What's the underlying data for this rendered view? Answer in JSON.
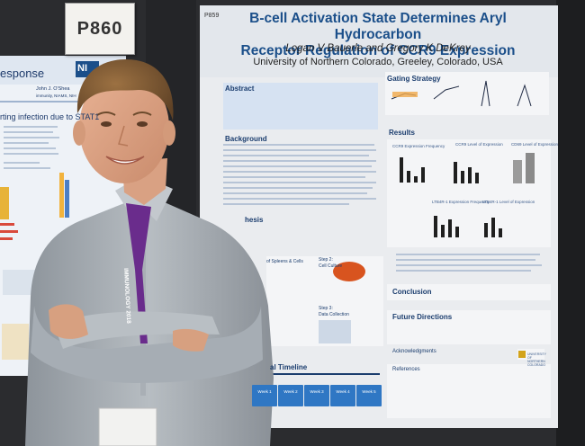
{
  "left_board": {
    "card_number": "P860",
    "poster_title_fragment": "esponse",
    "logo_text": "NI",
    "author_line": "John J. O'Shea",
    "affiliation_line": "immunity, NIAMS, NIH",
    "heading_fragment": "rting infection due to STAT1"
  },
  "main_poster": {
    "poster_id": "P859",
    "title_line1": "B-cell Activation State Determines Aryl Hydrocarbon",
    "title_line2": "Receptor Regulation of CCR9 Expression",
    "authors": "Logan V Bauerle and Gregory K DeKrey",
    "affiliation": "University of Northern Colorado, Greeley, Colorado, USA",
    "sections": {
      "abstract": "Abstract",
      "background": "Background",
      "hypothesis": "hesis",
      "gating": "Gating Strategy",
      "results": "Results",
      "conclusion": "Conclusion",
      "future": "Future Directions",
      "acknowledgments": "Acknowledgments",
      "references": "References",
      "timeline": "al Timeline"
    },
    "step_labels": {
      "spleen": "of Spleens & Cells",
      "culture_step": "Step 2:",
      "culture": "Cell Culture",
      "collection_step": "Step 3:",
      "collection": "Data Collection"
    },
    "chart_labels": {
      "ccr9_freq": "CCR9 Expression Frequency",
      "ccr9_level": "CCR9 Level of Expression",
      "cd69": "CD69 Level of Expression",
      "ltb4r_freq": "LTB4R-1 Expression Frequency",
      "ltb4r_level": "LTB4R-1 Level of Expression"
    },
    "timeline_boxes": [
      "Week 1",
      "Week 2",
      "Week 3",
      "Week 4",
      "Week 5"
    ],
    "logo_text": "UNIVERSITY OF NORTHERN COLORADO"
  },
  "lanyard_text": "IMMUNOLOGY 2018"
}
